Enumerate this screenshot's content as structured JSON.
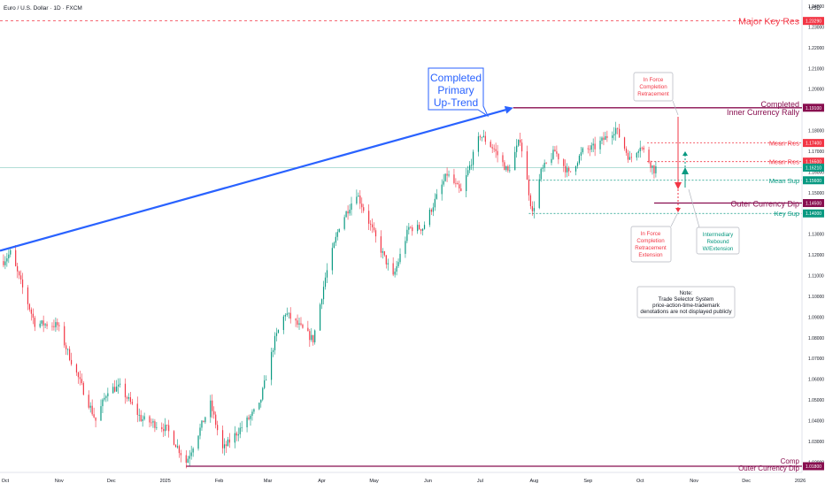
{
  "header": {
    "symbol_title": "Euro / U.S. Dollar · 1D · FXCM",
    "currency": "USD"
  },
  "chart_data": {
    "type": "candlestick",
    "y_range": [
      1.015,
      1.243
    ],
    "y_ticks": [
      1.02,
      1.03,
      1.04,
      1.05,
      1.06,
      1.07,
      1.08,
      1.09,
      1.1,
      1.11,
      1.12,
      1.13,
      1.14,
      1.15,
      1.16,
      1.17,
      1.18,
      1.19,
      1.2,
      1.21,
      1.22,
      1.23,
      1.24
    ],
    "y_tick_labels": [
      "1.02000",
      "1.03000",
      "1.04000",
      "1.05000",
      "1.06000",
      "1.07000",
      "1.08000",
      "1.09000",
      "1.10000",
      "1.11000",
      "1.12000",
      "1.13000",
      "1.14000",
      "1.15000",
      "1.16000",
      "1.17000",
      "1.18000",
      "1.19000",
      "1.20000",
      "1.21000",
      "1.22000",
      "1.23000",
      "1.24000"
    ],
    "x_range": [
      "2024-09-28",
      "2026-01-02"
    ],
    "x_ticks": [
      {
        "label": "Oct",
        "date": "2024-10-01"
      },
      {
        "label": "Nov",
        "date": "2024-11-01"
      },
      {
        "label": "Dec",
        "date": "2024-12-01"
      },
      {
        "label": "2025",
        "date": "2025-01-01"
      },
      {
        "label": "Feb",
        "date": "2025-02-01"
      },
      {
        "label": "Mar",
        "date": "2025-03-01"
      },
      {
        "label": "Apr",
        "date": "2025-04-01"
      },
      {
        "label": "May",
        "date": "2025-05-01"
      },
      {
        "label": "Jun",
        "date": "2025-06-01"
      },
      {
        "label": "Jul",
        "date": "2025-07-01"
      },
      {
        "label": "Aug",
        "date": "2025-08-01"
      },
      {
        "label": "Sep",
        "date": "2025-09-01"
      },
      {
        "label": "Oct",
        "date": "2025-10-01"
      },
      {
        "label": "Nov",
        "date": "2025-11-01"
      },
      {
        "label": "Dec",
        "date": "2025-12-01"
      },
      {
        "label": "2026",
        "date": "2026-01-01"
      }
    ],
    "price_path": [
      [
        "2024-09-30",
        1.117
      ],
      [
        "2024-10-04",
        1.121
      ],
      [
        "2024-10-18",
        1.087
      ],
      [
        "2024-10-31",
        1.086
      ],
      [
        "2024-11-06",
        1.073
      ],
      [
        "2024-11-22",
        1.04
      ],
      [
        "2024-11-29",
        1.055
      ],
      [
        "2024-12-06",
        1.056
      ],
      [
        "2024-12-18",
        1.041
      ],
      [
        "2025-01-02",
        1.036
      ],
      [
        "2025-01-13",
        1.02
      ],
      [
        "2025-01-27",
        1.048
      ],
      [
        "2025-02-03",
        1.026
      ],
      [
        "2025-02-24",
        1.047
      ],
      [
        "2025-03-05",
        1.079
      ],
      [
        "2025-03-11",
        1.092
      ],
      [
        "2025-03-27",
        1.079
      ],
      [
        "2025-04-03",
        1.109
      ],
      [
        "2025-04-11",
        1.134
      ],
      [
        "2025-04-21",
        1.15
      ],
      [
        "2025-05-01",
        1.13
      ],
      [
        "2025-05-12",
        1.109
      ],
      [
        "2025-05-21",
        1.133
      ],
      [
        "2025-05-29",
        1.133
      ],
      [
        "2025-06-12",
        1.159
      ],
      [
        "2025-06-20",
        1.15
      ],
      [
        "2025-07-01",
        1.178
      ],
      [
        "2025-07-09",
        1.171
      ],
      [
        "2025-07-17",
        1.16
      ],
      [
        "2025-07-24",
        1.176
      ],
      [
        "2025-07-31",
        1.14
      ],
      [
        "2025-08-05",
        1.16
      ],
      [
        "2025-08-13",
        1.17
      ],
      [
        "2025-08-21",
        1.159
      ],
      [
        "2025-08-29",
        1.17
      ],
      [
        "2025-09-05",
        1.172
      ],
      [
        "2025-09-17",
        1.181
      ],
      [
        "2025-09-25",
        1.166
      ],
      [
        "2025-10-01",
        1.173
      ],
      [
        "2025-10-09",
        1.161
      ],
      [
        "2025-10-10",
        1.162
      ]
    ],
    "candles_note": "Daily OHLC candles (green up, red down) follow price_path",
    "colors": {
      "up": "#089981",
      "down": "#f23645",
      "trend_arrow": "#2962ff",
      "purple": "#880e4f",
      "red": "#f23645",
      "green": "#089981"
    },
    "levels": [
      {
        "id": "major-key-res",
        "price": 1.2329,
        "name": "Major Key Res",
        "label": "1.23290",
        "color": "#f23645",
        "style": "dashed",
        "start": "2024-09-28"
      },
      {
        "id": "completed-inner-rally",
        "price": 1.191,
        "name": "Completed Inner Currency Rally",
        "label": "1.19100",
        "color": "#880e4f",
        "style": "solid",
        "start": "2025-07-20"
      },
      {
        "id": "mean-res-1",
        "price": 1.174,
        "name": "Mean Res",
        "label": "1.17400",
        "color": "#f23645",
        "style": "dotted",
        "start": "2025-10-05"
      },
      {
        "id": "mean-res-2",
        "price": 1.165,
        "name": "Mean Res",
        "label": "1.16500",
        "color": "#f23645",
        "style": "dotted",
        "start": "2025-10-05"
      },
      {
        "id": "current-price",
        "price": 1.1621,
        "name": "",
        "label": "1.16210",
        "color": "#089981",
        "style": "faint",
        "start": "2024-09-28"
      },
      {
        "id": "mean-sup",
        "price": 1.156,
        "name": "Mean Sup",
        "label": "1.15600",
        "color": "#089981",
        "style": "dotted",
        "start": "2025-07-29"
      },
      {
        "id": "outer-currency-dip",
        "price": 1.145,
        "name": "Outer Currency Dip",
        "label": "1.14500",
        "color": "#880e4f",
        "style": "solid",
        "start": "2025-10-09"
      },
      {
        "id": "key-sup",
        "price": 1.14,
        "name": "Key Sup",
        "label": "1.14000",
        "color": "#089981",
        "style": "dotted",
        "start": "2025-07-29"
      },
      {
        "id": "comp-outer-dip",
        "price": 1.018,
        "name": "Comp Outer Currency Dip",
        "label": "1.01800",
        "color": "#880e4f",
        "style": "solid",
        "start": "2025-01-13"
      }
    ],
    "trend_arrow": {
      "from": [
        "2024-09-28",
        1.122
      ],
      "to": [
        "2025-07-20",
        1.191
      ]
    },
    "annotations": [
      {
        "id": "completed-primary-uptrend",
        "lines": [
          "Completed",
          "Primary",
          "Up-Trend"
        ],
        "color": "#2962ff"
      },
      {
        "id": "in-force-completion-retracement",
        "lines": [
          "In Force",
          "Completion",
          "Retracement"
        ],
        "color": "#f23645"
      },
      {
        "id": "in-force-completion-retracement-extension",
        "lines": [
          "In Force",
          "Completion",
          "Retracement",
          "Extension"
        ],
        "color": "#f23645"
      },
      {
        "id": "intermediary-rebound",
        "lines": [
          "Intermediary",
          "Rebound",
          "W/Extension"
        ],
        "color": "#089981"
      },
      {
        "id": "note",
        "lines": [
          "Note:",
          "Trade Selector System",
          "price-action-time-trademark",
          "denotations are not displayed publicly"
        ],
        "color": "#131722"
      }
    ]
  }
}
